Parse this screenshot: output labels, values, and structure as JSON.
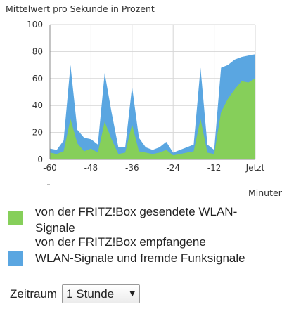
{
  "chart": {
    "title": "Mittelwert pro Sekunde in Prozent",
    "unit_label": "Minuten",
    "colors": {
      "sent": "#86cf5a",
      "received": "#5aa6e1",
      "grid": "#d6d6d6",
      "axis": "#888888"
    }
  },
  "chart_data": {
    "type": "area",
    "title": "Mittelwert pro Sekunde in Prozent",
    "xlabel": "Minuten",
    "ylabel": "",
    "ylim": [
      0,
      100
    ],
    "xlim": [
      -60,
      0
    ],
    "y_ticks": [
      0,
      20,
      40,
      60,
      80,
      100
    ],
    "x_ticks": [
      -60,
      -48,
      -36,
      -24,
      -12,
      0
    ],
    "x_tick_labels": [
      "-60",
      "-48",
      "-36",
      "-24",
      "-12",
      "Jetzt"
    ],
    "grid": true,
    "stacked": true,
    "x": [
      -60,
      -58,
      -56,
      -54,
      -52,
      -50,
      -48,
      -46,
      -44,
      -42,
      -40,
      -38,
      -36,
      -34,
      -32,
      -30,
      -28,
      -26,
      -24,
      -22,
      -20,
      -18,
      -16,
      -14,
      -12,
      -10,
      -8,
      -6,
      -4,
      -2,
      0
    ],
    "series": [
      {
        "name": "von der FRITZ!Box gesendete WLAN-Signale",
        "values": [
          5,
          4,
          6,
          30,
          12,
          6,
          8,
          5,
          28,
          15,
          4,
          5,
          26,
          6,
          5,
          4,
          5,
          7,
          3,
          4,
          5,
          6,
          30,
          5,
          4,
          35,
          45,
          52,
          58,
          57,
          60
        ]
      },
      {
        "name": "von der FRITZ!Box empfangene WLAN-Signale und fremde Funksignale",
        "values": [
          3,
          3,
          8,
          40,
          10,
          10,
          7,
          6,
          36,
          20,
          5,
          4,
          28,
          10,
          4,
          3,
          4,
          6,
          2,
          3,
          4,
          5,
          38,
          6,
          3,
          33,
          25,
          22,
          18,
          20,
          18
        ]
      }
    ]
  },
  "legend": {
    "items": [
      {
        "label": "von der FRITZ!Box gesendete WLAN-Signale",
        "color": "#86cf5a"
      },
      {
        "label": "von der FRITZ!Box empfangene WLAN-Signale und fremde Funksignale",
        "color": "#5aa6e1"
      }
    ]
  },
  "timespan": {
    "label": "Zeitraum",
    "selected": "1 Stunde",
    "icon": "chevron-down-icon"
  }
}
